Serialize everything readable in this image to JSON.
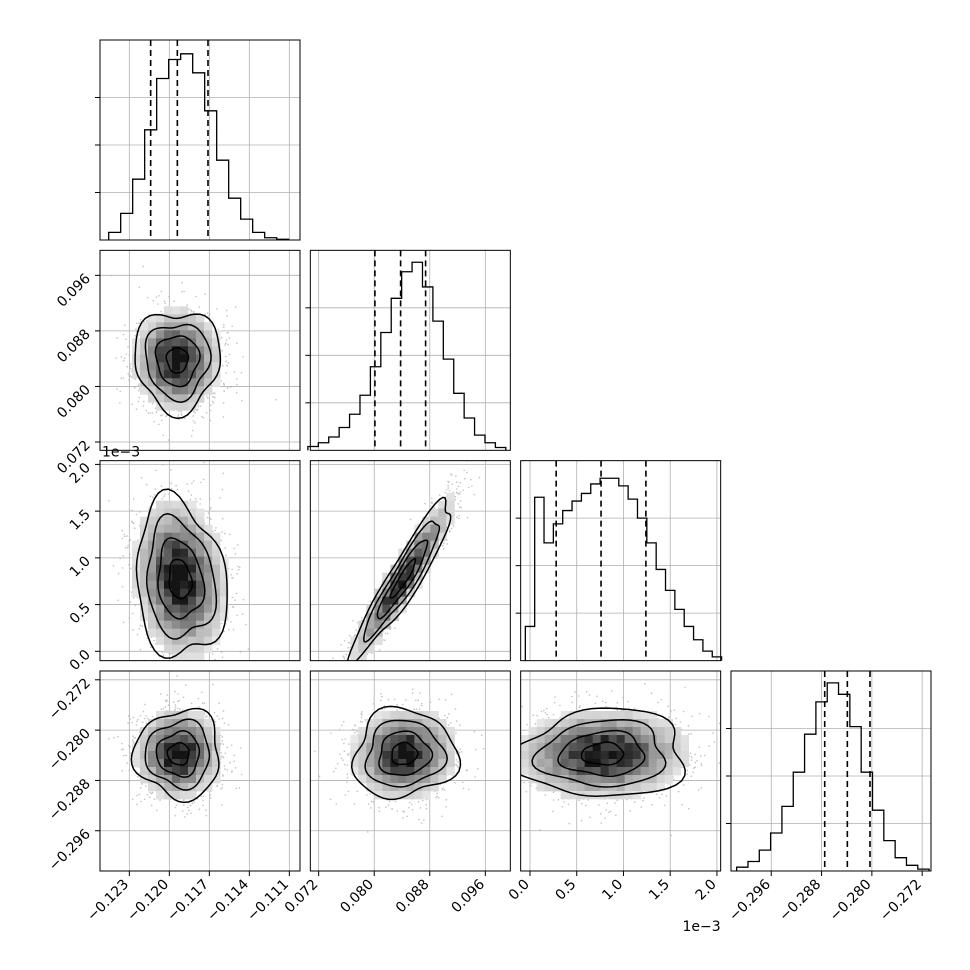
{
  "chart_data": {
    "type": "corner",
    "grid": true,
    "params": [
      {
        "key": "p0",
        "range": [
          -0.1252,
          -0.1102
        ],
        "ticks": [
          -0.123,
          -0.12,
          -0.117,
          -0.114,
          -0.111
        ],
        "tick_labels": [
          "−0.123",
          "−0.120",
          "−0.117",
          "−0.114",
          "−0.111"
        ],
        "offset_label": "",
        "quantiles": [
          -0.1214,
          -0.1194,
          -0.1171
        ],
        "hist_bins": [
          -0.1241,
          -0.1232,
          -0.1223,
          -0.1214,
          -0.1205,
          -0.1196,
          -0.1187,
          -0.1178,
          -0.1169,
          -0.116,
          -0.1151,
          -0.1142,
          -0.1133,
          -0.1124,
          -0.1115
        ],
        "hist": [
          0.04,
          0.14,
          0.32,
          0.58,
          0.85,
          0.95,
          0.98,
          0.88,
          0.68,
          0.42,
          0.22,
          0.11,
          0.04,
          0.012,
          0.004
        ]
      },
      {
        "key": "p1",
        "range": [
          0.0708,
          0.0996
        ],
        "ticks": [
          0.072,
          0.08,
          0.088,
          0.096
        ],
        "tick_labels": [
          "0.072",
          "0.080",
          "0.088",
          "0.096"
        ],
        "offset_label": "",
        "quantiles": [
          0.0801,
          0.0838,
          0.0874
        ],
        "hist_bins": [
          0.0712,
          0.0727,
          0.0742,
          0.0757,
          0.0772,
          0.0787,
          0.0802,
          0.0817,
          0.0832,
          0.0847,
          0.0862,
          0.0877,
          0.0892,
          0.0907,
          0.0922,
          0.0937,
          0.0952,
          0.0967,
          0.0982
        ],
        "hist": [
          0.02,
          0.04,
          0.07,
          0.12,
          0.19,
          0.29,
          0.44,
          0.62,
          0.8,
          0.94,
          0.99,
          0.86,
          0.68,
          0.48,
          0.3,
          0.17,
          0.08,
          0.04,
          0.015
        ]
      },
      {
        "key": "p2",
        "range": [
          -0.0001,
          0.00204
        ],
        "ticks": [
          0,
          0.0005,
          0.001,
          0.0015,
          0.002
        ],
        "tick_labels": [
          "0.0",
          "0.5",
          "1.0",
          "1.5",
          "2.0"
        ],
        "offset_label": "1e−3",
        "quantiles": [
          0.00028,
          0.00076,
          0.00124
        ],
        "hist_bins": [
          0.0,
          0.0001,
          0.0002,
          0.0003,
          0.0004,
          0.0005,
          0.0006,
          0.0007,
          0.0008,
          0.0009,
          0.001,
          0.0011,
          0.0012,
          0.0013,
          0.0014,
          0.0015,
          0.0016,
          0.0017,
          0.0018,
          0.0019,
          0.002
        ],
        "hist": [
          0.18,
          0.86,
          0.62,
          0.72,
          0.79,
          0.84,
          0.88,
          0.93,
          0.96,
          0.96,
          0.92,
          0.85,
          0.75,
          0.62,
          0.48,
          0.37,
          0.27,
          0.18,
          0.11,
          0.05,
          0.02
        ]
      },
      {
        "key": "p3",
        "range": [
          -0.3024,
          -0.2706
        ],
        "ticks": [
          -0.296,
          -0.288,
          -0.28,
          -0.272
        ],
        "tick_labels": [
          "−0.296",
          "−0.288",
          "−0.280",
          "−0.272"
        ],
        "offset_label": "",
        "quantiles": [
          -0.2875,
          -0.2839,
          -0.2803
        ],
        "hist_bins": [
          -0.3006,
          -0.2988,
          -0.297,
          -0.2952,
          -0.2934,
          -0.2916,
          -0.2898,
          -0.288,
          -0.2862,
          -0.2844,
          -0.2826,
          -0.2808,
          -0.279,
          -0.2772,
          -0.2754,
          -0.2736,
          -0.2718
        ],
        "hist": [
          0.02,
          0.05,
          0.11,
          0.2,
          0.34,
          0.52,
          0.72,
          0.89,
          0.99,
          0.93,
          0.76,
          0.52,
          0.32,
          0.16,
          0.07,
          0.03,
          0.01
        ]
      }
    ],
    "pairs": [
      {
        "x": 0,
        "y": 1,
        "mean": [
          -0.1194,
          0.0838
        ],
        "sigma": [
          0.0016,
          0.0036
        ],
        "rho": 0.0,
        "contours": [
          0.5,
          1.0,
          1.5,
          2.0
        ],
        "seed": 11
      },
      {
        "x": 0,
        "y": 2,
        "mean": [
          -0.1192,
          0.00077
        ],
        "sigma": [
          0.0017,
          0.00042
        ],
        "rho": -0.15,
        "contours": [
          0.5,
          1.0,
          1.5,
          2.0
        ],
        "seed": 23
      },
      {
        "x": 1,
        "y": 2,
        "mean": [
          0.0842,
          0.00078
        ],
        "sigma": [
          0.0036,
          0.00042
        ],
        "rho": 0.93,
        "contours": [
          0.5,
          1.0,
          1.5,
          2.0
        ],
        "seed": 37
      },
      {
        "x": 0,
        "y": 3,
        "mean": [
          -0.1193,
          -0.2838
        ],
        "sigma": [
          0.0016,
          0.0035
        ],
        "rho": 0.0,
        "contours": [
          0.5,
          1.0,
          1.5,
          2.0
        ],
        "seed": 41
      },
      {
        "x": 1,
        "y": 3,
        "mean": [
          0.0843,
          -0.2838
        ],
        "sigma": [
          0.0037,
          0.0035
        ],
        "rho": 0.05,
        "contours": [
          0.5,
          1.0,
          1.5,
          2.0
        ],
        "seed": 53
      },
      {
        "x": 2,
        "y": 3,
        "mean": [
          0.00078,
          -0.2838
        ],
        "sigma": [
          0.00045,
          0.0035
        ],
        "rho": 0.05,
        "contours": [
          0.5,
          1.0,
          1.5,
          2.0
        ],
        "seed": 67
      }
    ]
  }
}
